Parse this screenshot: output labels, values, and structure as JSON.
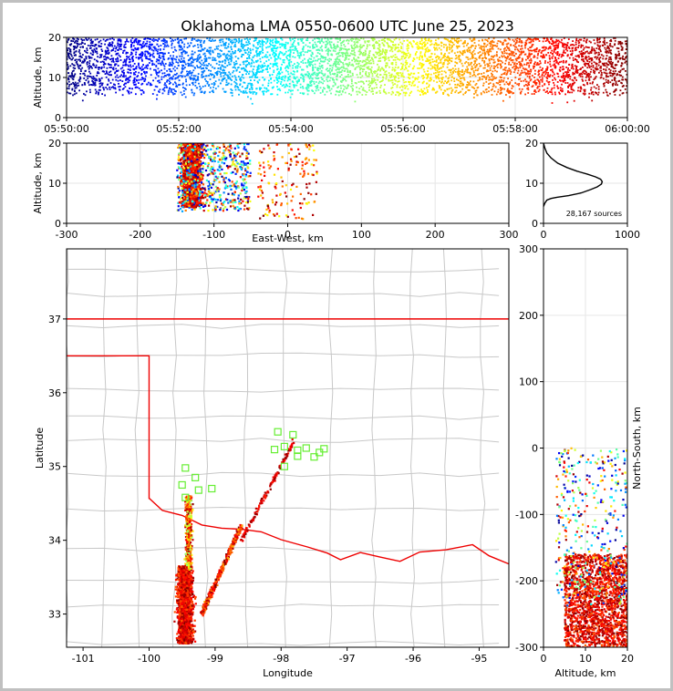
{
  "title": "Oklahoma LMA 0550-0600 UTC June 25, 2023",
  "colors": {
    "axis": "#000000",
    "grid": "#e6e6e6",
    "county_lines": "#c8c8c8",
    "state_border": "#ee0000",
    "station_marker": "#66ee33",
    "histogram_line": "#000000"
  },
  "colormap": "jet",
  "chart_data": [
    {
      "id": "time_altitude",
      "type": "scatter",
      "x_unit": "time UTC",
      "ylabel": "Altitude, km",
      "xlim": [
        "05:50:00",
        "06:00:00"
      ],
      "ylim": [
        0,
        20
      ],
      "x_ticks": [
        "05:50:00",
        "05:52:00",
        "05:54:00",
        "05:56:00",
        "05:58:00",
        "06:00:00"
      ],
      "y_ticks": [
        0,
        10,
        20
      ],
      "altitude_band_km": [
        5,
        20
      ],
      "color_by": "time"
    },
    {
      "id": "eastwest_altitude",
      "type": "scatter",
      "xlabel": "East-West, km",
      "ylabel": "Altitude, km",
      "xlim": [
        -300,
        300
      ],
      "ylim": [
        0,
        20
      ],
      "x_ticks": [
        -300,
        -200,
        -100,
        0,
        100,
        200,
        300
      ],
      "y_ticks": [
        0,
        10,
        20
      ],
      "clusters": [
        {
          "x_range": [
            -160,
            -100
          ],
          "y_range": [
            3,
            20
          ],
          "density": "high"
        },
        {
          "x_range": [
            -180,
            -60
          ],
          "y_range": [
            2,
            20
          ],
          "density": "medium"
        },
        {
          "x_range": [
            -40,
            40
          ],
          "y_range": [
            1,
            20
          ],
          "density": "low"
        }
      ]
    },
    {
      "id": "altitude_histogram",
      "type": "line",
      "xlim": [
        0,
        1000
      ],
      "ylim": [
        0,
        20
      ],
      "x_ticks": [
        0,
        1000
      ],
      "y_ticks": [
        0,
        10,
        20
      ],
      "annotation": "28,167 sources",
      "series": [
        {
          "x": [
            0,
            15,
            40,
            90,
            160,
            300,
            450,
            560,
            640,
            690,
            700,
            680,
            620,
            520,
            400,
            280,
            170,
            90,
            40,
            15,
            0
          ],
          "y": [
            4.2,
            5.0,
            5.8,
            6.2,
            6.5,
            6.9,
            7.6,
            8.4,
            9.1,
            9.8,
            10.4,
            11.0,
            11.6,
            12.3,
            13.0,
            13.9,
            15.0,
            16.3,
            17.5,
            18.8,
            20.0
          ]
        }
      ]
    },
    {
      "id": "plan_view",
      "type": "scatter",
      "xlabel": "Longitude",
      "ylabel": "Latitude",
      "xlim": [
        -101.25,
        -94.55
      ],
      "ylim": [
        32.55,
        37.95
      ],
      "x_ticks": [
        -101,
        -100,
        -99,
        -98,
        -97,
        -96,
        -95
      ],
      "y_ticks": [
        33,
        34,
        35,
        36,
        37
      ],
      "clusters": [
        {
          "lon": [
            -99.7,
            -99.2
          ],
          "lat": [
            32.55,
            33.7
          ],
          "density": "high"
        },
        {
          "lon": [
            -99.55,
            -99.25
          ],
          "lat": [
            33.6,
            34.6
          ],
          "density": "medium"
        },
        {
          "lon": [
            -99.2,
            -98.6
          ],
          "lat": [
            33.0,
            34.2
          ],
          "density": "medium"
        },
        {
          "lon": [
            -98.6,
            -97.8
          ],
          "lat": [
            34.0,
            35.4
          ],
          "density": "low"
        }
      ],
      "stations": [
        [
          -99.45,
          34.98
        ],
        [
          -99.3,
          34.85
        ],
        [
          -99.5,
          34.75
        ],
        [
          -99.25,
          34.68
        ],
        [
          -99.45,
          34.58
        ],
        [
          -99.05,
          34.7
        ],
        [
          -98.05,
          35.47
        ],
        [
          -97.82,
          35.43
        ],
        [
          -98.1,
          35.23
        ],
        [
          -97.95,
          35.27
        ],
        [
          -97.75,
          35.22
        ],
        [
          -97.62,
          35.25
        ],
        [
          -97.5,
          35.13
        ],
        [
          -97.42,
          35.19
        ],
        [
          -97.35,
          35.24
        ],
        [
          -97.75,
          35.14
        ],
        [
          -97.95,
          35.0
        ]
      ],
      "color_by": "time"
    },
    {
      "id": "altitude_northsouth",
      "type": "scatter",
      "xlabel": "Altitude, km",
      "ylabel": "North-South, km",
      "xlim": [
        0,
        20
      ],
      "ylim": [
        -300,
        300
      ],
      "x_ticks": [
        0,
        10,
        20
      ],
      "y_ticks": [
        -300,
        -200,
        -100,
        0,
        100,
        200,
        300
      ],
      "clusters": [
        {
          "x_range": [
            4,
            20
          ],
          "y_range": [
            -300,
            -160
          ],
          "density": "high"
        },
        {
          "x_range": [
            2,
            20
          ],
          "y_range": [
            -160,
            0
          ],
          "density": "low"
        }
      ],
      "color_by": "time"
    }
  ]
}
